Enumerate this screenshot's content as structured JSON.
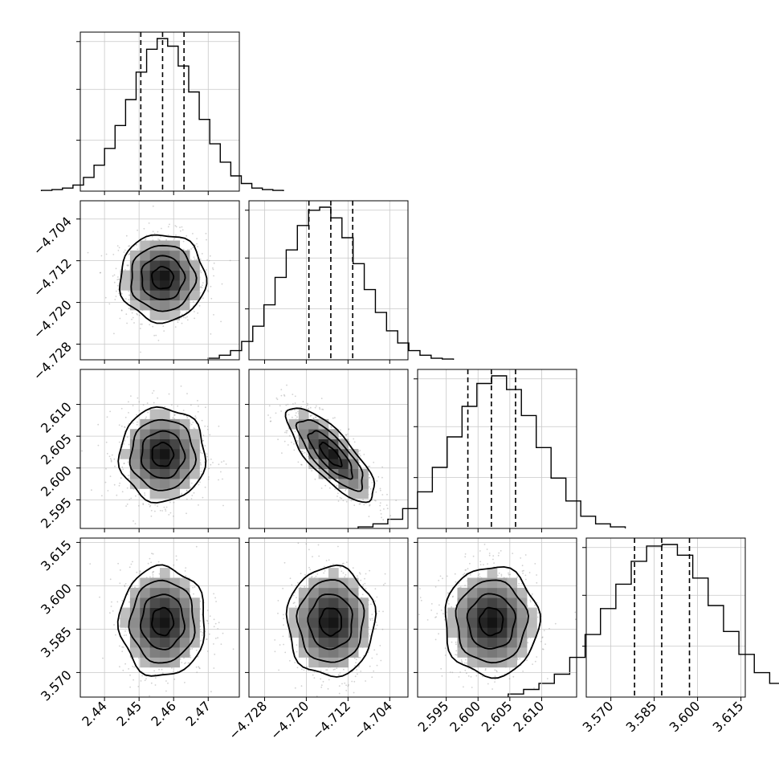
{
  "chart_data": {
    "type": "corner",
    "grid": true,
    "parameters": [
      {
        "index": 0,
        "range": [
          2.433,
          2.479
        ],
        "ticks": [
          "2.44",
          "2.45",
          "2.46",
          "2.47"
        ],
        "quantiles": [
          2.4505,
          2.4568,
          2.463
        ],
        "hist": [
          0.005,
          0.01,
          0.02,
          0.04,
          0.09,
          0.17,
          0.28,
          0.43,
          0.6,
          0.78,
          0.93,
          1.0,
          0.95,
          0.82,
          0.65,
          0.47,
          0.31,
          0.19,
          0.1,
          0.05,
          0.02,
          0.01,
          0.005
        ]
      },
      {
        "index": 1,
        "range": [
          -4.731,
          -4.7005
        ],
        "ticks": [
          "−4.728",
          "−4.720",
          "−4.712",
          "−4.704"
        ],
        "quantiles": [
          -4.7195,
          -4.7153,
          -4.7111
        ],
        "hist": [
          0.01,
          0.03,
          0.06,
          0.12,
          0.22,
          0.36,
          0.54,
          0.72,
          0.88,
          0.98,
          1.0,
          0.93,
          0.8,
          0.63,
          0.46,
          0.31,
          0.19,
          0.11,
          0.06,
          0.03,
          0.01,
          0.005
        ]
      },
      {
        "index": 2,
        "range": [
          2.5905,
          2.6155
        ],
        "ticks": [
          "2.595",
          "2.600",
          "2.605",
          "2.610"
        ],
        "quantiles": [
          2.5984,
          2.6021,
          2.6059
        ],
        "hist": [
          0.01,
          0.03,
          0.06,
          0.13,
          0.24,
          0.4,
          0.6,
          0.8,
          0.95,
          1.0,
          0.91,
          0.74,
          0.53,
          0.33,
          0.18,
          0.08,
          0.03,
          0.01
        ]
      },
      {
        "index": 3,
        "range": [
          3.5615,
          3.6165
        ],
        "ticks": [
          "3.570",
          "3.585",
          "3.600",
          "3.615"
        ],
        "quantiles": [
          3.5782,
          3.5876,
          3.5972
        ],
        "hist": [
          0.02,
          0.05,
          0.09,
          0.15,
          0.26,
          0.41,
          0.58,
          0.74,
          0.89,
          0.99,
          1.0,
          0.93,
          0.78,
          0.6,
          0.43,
          0.28,
          0.16,
          0.09,
          0.04,
          0.02
        ]
      }
    ],
    "pairs": [
      {
        "x": 0,
        "y": 1,
        "center": [
          2.4568,
          -4.7153
        ],
        "spread": [
          0.0062,
          0.0042
        ],
        "rho": 0.0
      },
      {
        "x": 0,
        "y": 2,
        "center": [
          2.4568,
          2.6021
        ],
        "spread": [
          0.0062,
          0.0037
        ],
        "rho": 0.0
      },
      {
        "x": 0,
        "y": 3,
        "center": [
          2.4568,
          3.5876
        ],
        "spread": [
          0.0062,
          0.0095
        ],
        "rho": 0.0
      },
      {
        "x": 1,
        "y": 2,
        "center": [
          -4.7153,
          2.6021
        ],
        "spread": [
          0.0042,
          0.0037
        ],
        "rho": -0.78
      },
      {
        "x": 1,
        "y": 3,
        "center": [
          -4.7153,
          3.5876
        ],
        "spread": [
          0.0042,
          0.0095
        ],
        "rho": 0.0
      },
      {
        "x": 2,
        "y": 3,
        "center": [
          2.6021,
          3.5876
        ],
        "spread": [
          0.0037,
          0.0095
        ],
        "rho": 0.0
      }
    ],
    "contour_levels_sigma": [
      0.5,
      1.0,
      1.5,
      2.0
    ]
  }
}
